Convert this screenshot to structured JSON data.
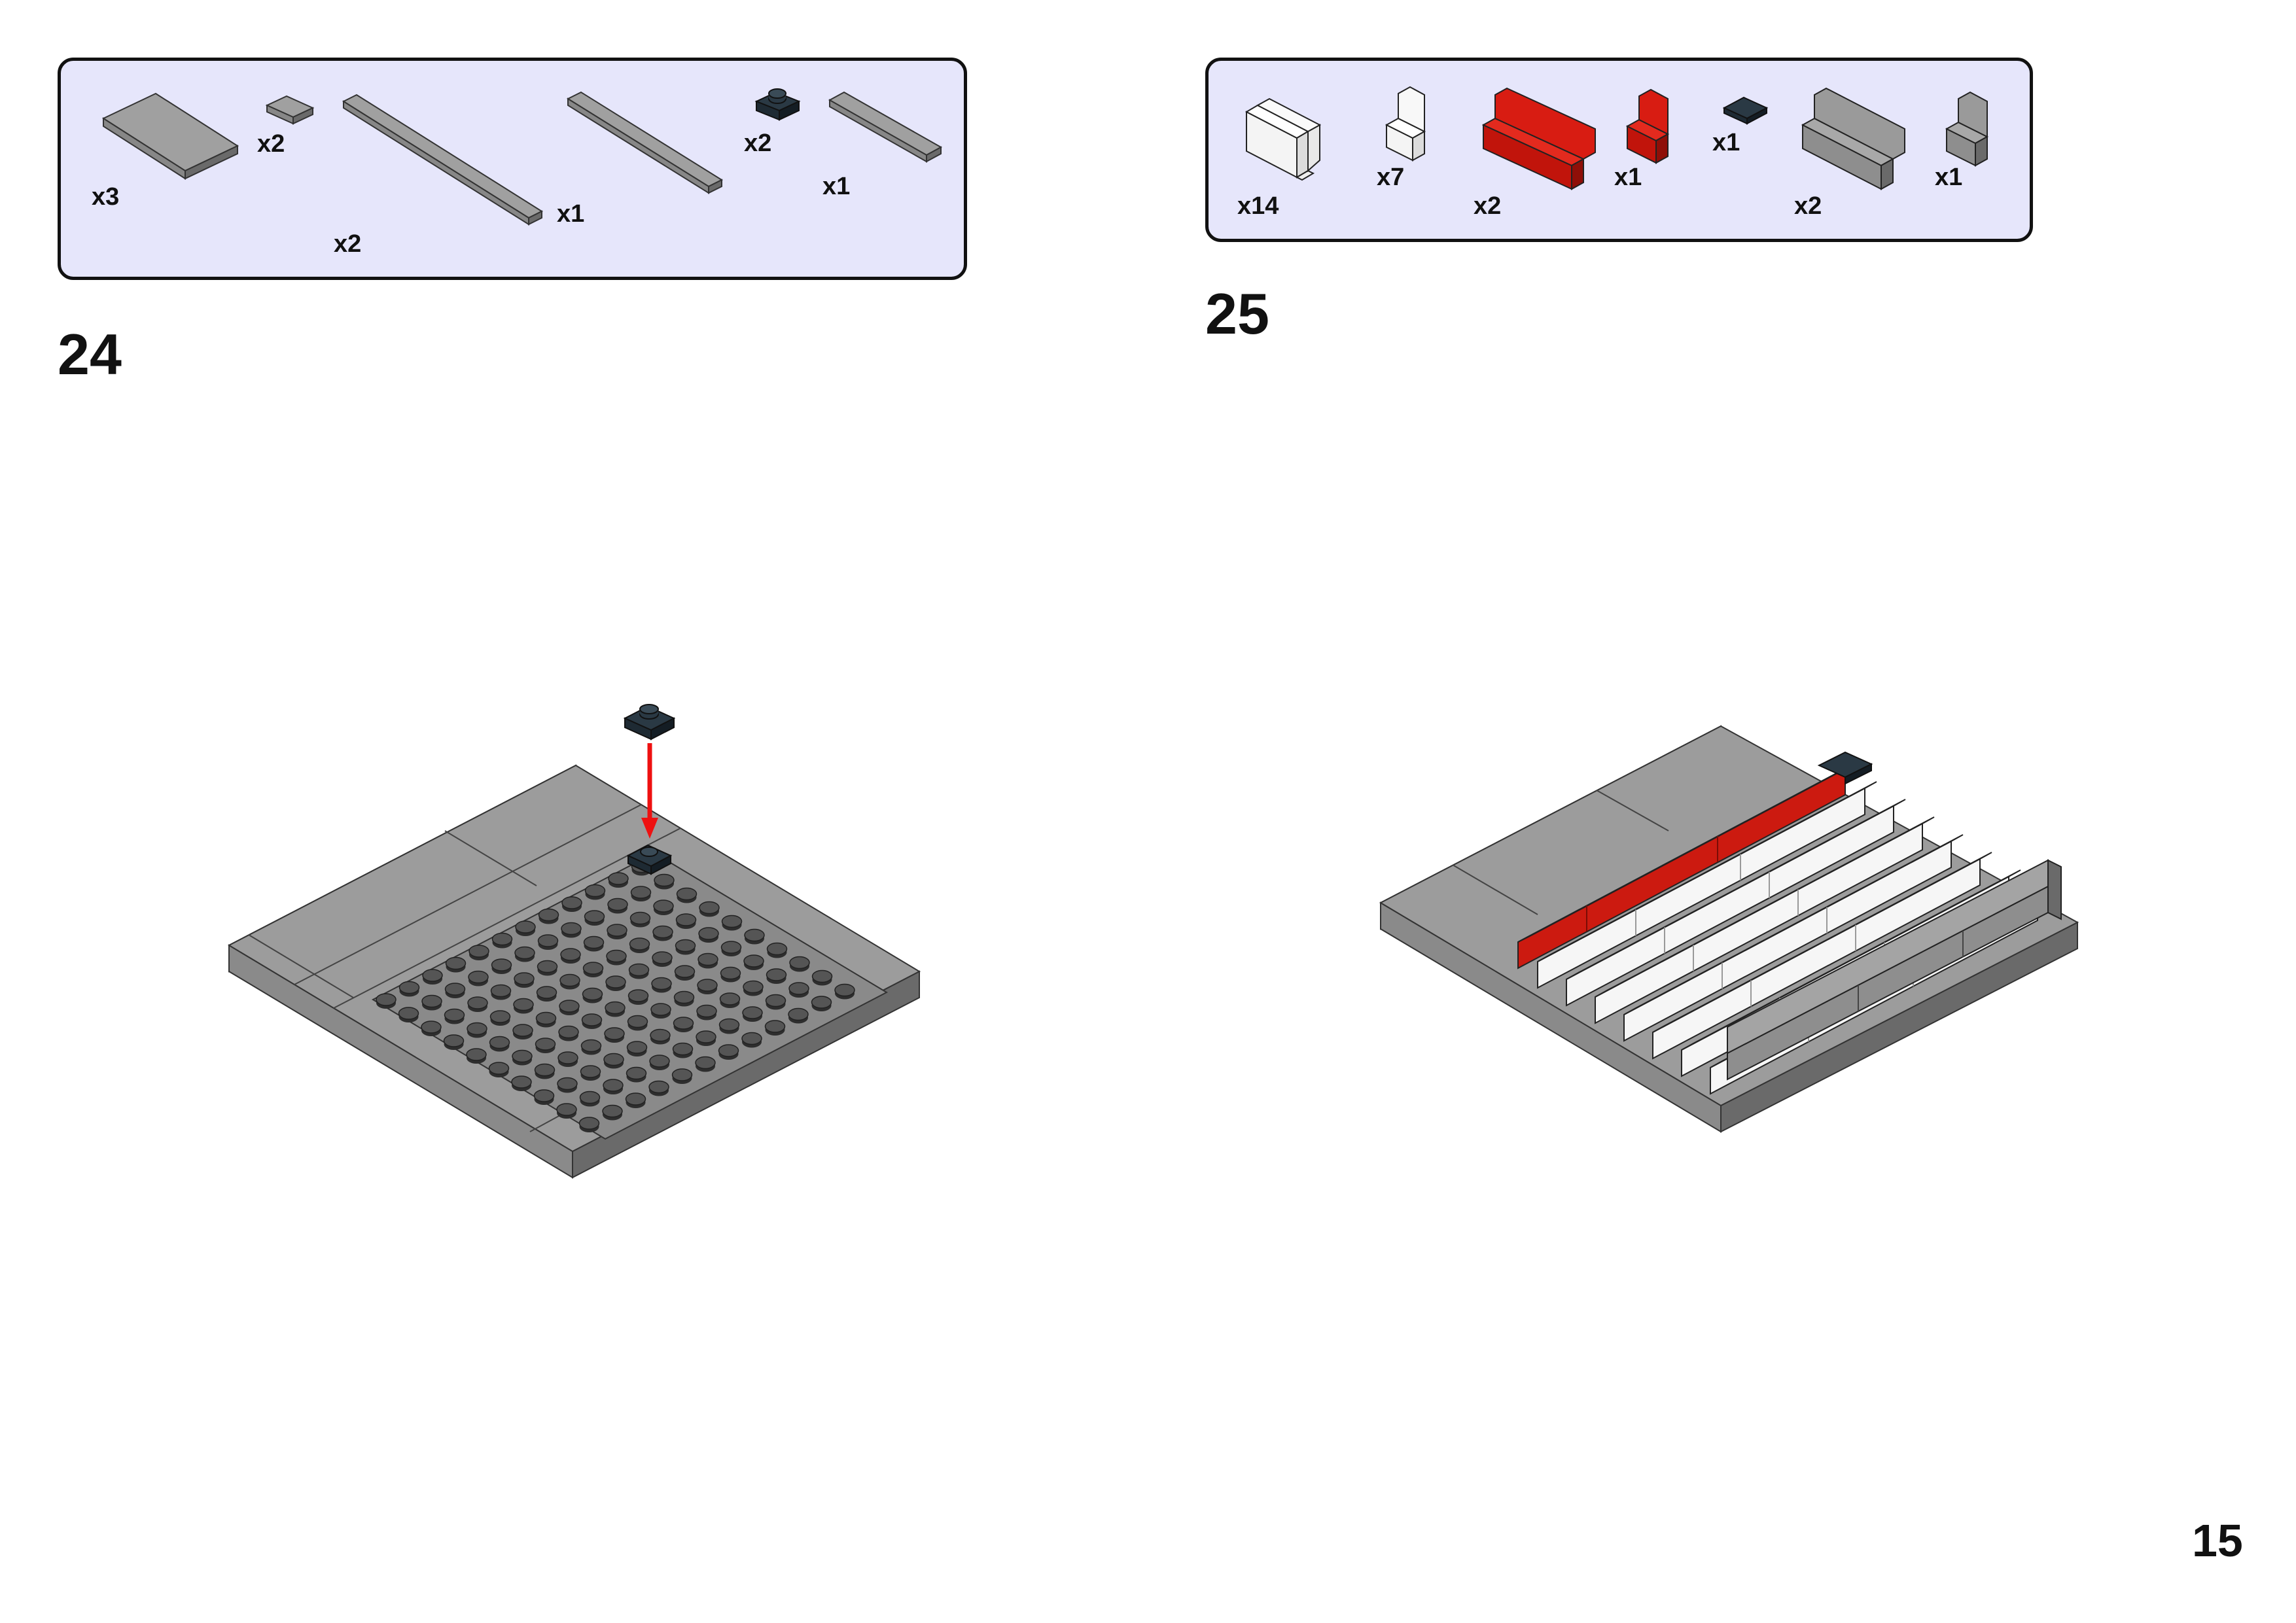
{
  "page": {
    "number": "15"
  },
  "steps": [
    {
      "number": "24",
      "parts": [
        {
          "name": "grey-tile-2x4",
          "qty": "x3"
        },
        {
          "name": "grey-tile-1x1",
          "qty": "x2"
        },
        {
          "name": "grey-tile-1x8",
          "qty": "x2"
        },
        {
          "name": "grey-tile-1x6",
          "qty": "x1"
        },
        {
          "name": "dark-blue-plate-1x1",
          "qty": "x2"
        },
        {
          "name": "grey-tile-1x4",
          "qty": "x1"
        }
      ]
    },
    {
      "number": "25",
      "parts": [
        {
          "name": "white-bracket-long",
          "qty": "x14"
        },
        {
          "name": "white-bracket-short",
          "qty": "x7"
        },
        {
          "name": "red-bracket-long",
          "qty": "x2"
        },
        {
          "name": "red-bracket-short",
          "qty": "x1"
        },
        {
          "name": "dark-blue-tile-1x1",
          "qty": "x1"
        },
        {
          "name": "grey-bracket-long",
          "qty": "x2"
        },
        {
          "name": "grey-bracket-short",
          "qty": "x1"
        }
      ]
    }
  ],
  "colors": {
    "panel_fill": "#e6e6fb",
    "grey": "#9a9a9a",
    "grey_dark": "#5f5f5f",
    "dark_blue": "#1e2a33",
    "red": "#cc1a10",
    "white": "#ffffff",
    "arrow": "#ee1111"
  }
}
